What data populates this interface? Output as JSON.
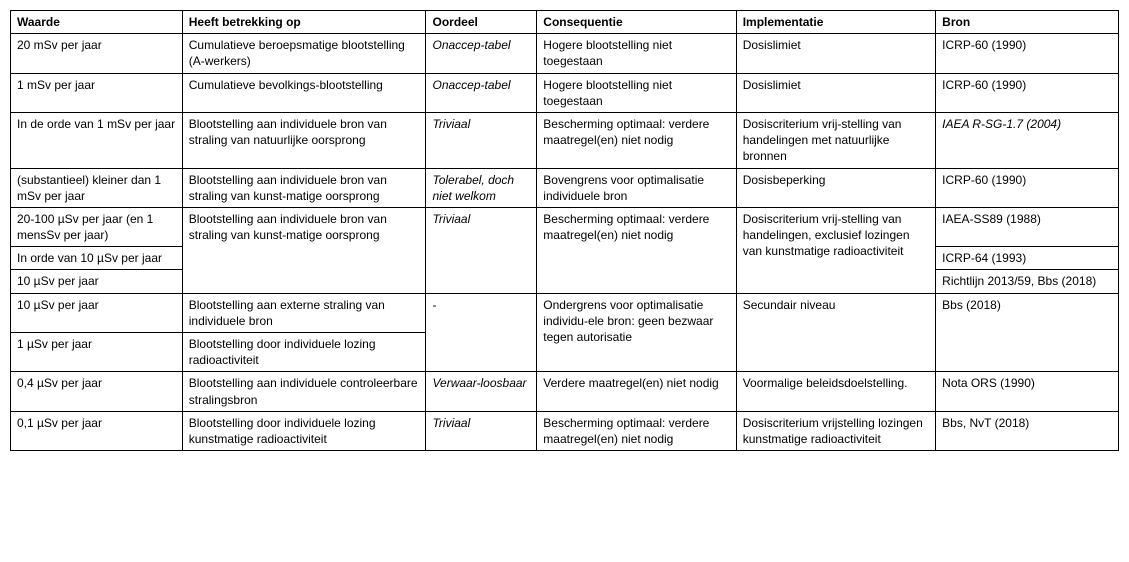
{
  "table": {
    "columns": [
      {
        "label": "Waarde"
      },
      {
        "label": "Heeft betrekking op"
      },
      {
        "label": "Oordeel"
      },
      {
        "label": "Consequentie"
      },
      {
        "label": "Implementatie"
      },
      {
        "label": "Bron"
      }
    ],
    "row1": {
      "waarde": "20 mSv per jaar",
      "betrekking": "Cumulatieve beroepsmatige blootstelling (A-werkers)",
      "oordeel": "Onaccep-tabel",
      "consequentie": "Hogere blootstelling niet toegestaan",
      "implementatie": "Dosislimiet",
      "bron": "ICRP-60 (1990)"
    },
    "row2": {
      "waarde": "1 mSv per jaar",
      "betrekking": "Cumulatieve bevolkings-blootstelling",
      "oordeel": "Onaccep-tabel",
      "consequentie": "Hogere blootstelling niet toegestaan",
      "implementatie": "Dosislimiet",
      "bron": "ICRP-60 (1990)"
    },
    "row3": {
      "waarde": "In de orde van 1 mSv per jaar",
      "betrekking": "Blootstelling aan individuele bron van straling van natuurlijke oorsprong",
      "oordeel": "Triviaal",
      "consequentie": "Bescherming optimaal: verdere maatregel(en) niet nodig",
      "implementatie": "Dosiscriterium vrij-stelling van handelingen met natuurlijke bronnen",
      "bron": "IAEA R-SG-1.7 (2004)"
    },
    "row4": {
      "waarde": "(substantieel) kleiner dan 1 mSv per jaar",
      "betrekking": "Blootstelling aan individuele bron van straling van kunst-matige oorsprong",
      "oordeel": "Tolerabel, doch niet welkom",
      "consequentie": "Bovengrens voor optimalisatie individuele bron",
      "implementatie": "Dosisbeperking",
      "bron": "ICRP-60 (1990)"
    },
    "row5": {
      "waarde": "20-100 µSv per jaar (en 1 mensSv per jaar)",
      "betrekking": "Blootstelling aan individuele bron van straling van kunst-matige oorsprong",
      "oordeel": "Triviaal",
      "consequentie": "Bescherming optimaal: verdere maatregel(en) niet nodig",
      "implementatie": "Dosiscriterium vrij-stelling van handelingen, exclusief lozingen van kunstmatige radioactiviteit",
      "bron": "IAEA-SS89 (1988)"
    },
    "row6": {
      "waarde": "In orde van 10 µSv per jaar",
      "bron": "ICRP-64 (1993)"
    },
    "row7": {
      "waarde": "10 µSv per jaar",
      "bron": "Richtlijn 2013/59, Bbs (2018)"
    },
    "row8": {
      "waarde": "10 µSv per jaar",
      "betrekking": "Blootstelling aan externe straling van individuele bron",
      "oordeel": "-",
      "consequentie": "Ondergrens voor optimalisatie individu-ele bron: geen bezwaar tegen autorisatie",
      "implementatie": "Secundair niveau",
      "bron": "Bbs (2018)"
    },
    "row9": {
      "waarde": "1 µSv per jaar",
      "betrekking": "Blootstelling door individuele lozing radioactiviteit"
    },
    "row10": {
      "waarde": "0,4 µSv per jaar",
      "betrekking": "Blootstelling aan individuele controleerbare stralingsbron",
      "oordeel": "Verwaar-loosbaar",
      "consequentie": "Verdere maatregel(en) niet nodig",
      "implementatie": "Voormalige beleidsdoelstelling.",
      "bron": "Nota ORS (1990)"
    },
    "row11": {
      "waarde": "0,1 µSv per jaar",
      "betrekking": "Blootstelling door individuele lozing kunstmatige radioactiviteit",
      "oordeel": "Triviaal",
      "consequentie": "Bescherming optimaal: verdere maatregel(en) niet nodig",
      "implementatie": "Dosiscriterium vrijstelling lozingen kunstmatige radioactiviteit",
      "bron": "Bbs, NvT (2018)"
    }
  },
  "style": {
    "font_family": "Verdana, sans-serif",
    "font_size_pt": 9,
    "border_color": "#000000",
    "background_color": "#ffffff",
    "col_widths_pct": [
      15.5,
      22,
      10,
      18,
      18,
      16.5
    ]
  }
}
